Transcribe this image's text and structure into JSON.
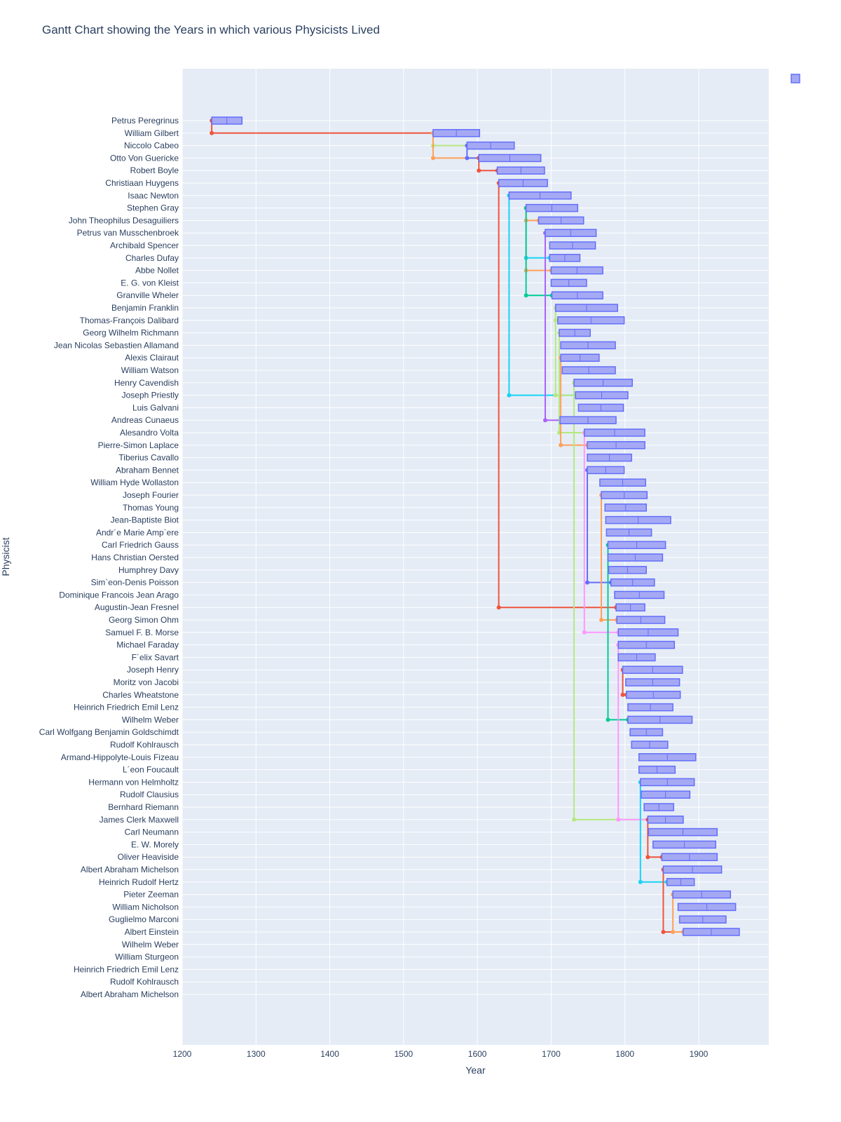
{
  "chart_data": {
    "type": "gantt",
    "title": "Gantt Chart showing the Years in which various Physicists Lived",
    "xlabel": "Year",
    "ylabel": "Physicist",
    "xlim": [
      1200,
      1995
    ],
    "x_ticks": [
      1200,
      1300,
      1400,
      1500,
      1600,
      1700,
      1800,
      1900
    ],
    "grid": true,
    "legend": "top-right",
    "colors": {
      "plot_bg": "#e5ecf6",
      "grid": "#ffffff",
      "bar_fill": "#a5a9f3",
      "bar_stroke": "#636efa",
      "text": "#2a3f5f",
      "link_palette": [
        "#ef553b",
        "#00cc96",
        "#ab63fa",
        "#ffa15a",
        "#19d3f3",
        "#ff6692",
        "#b6e880",
        "#ff97ff",
        "#fecb52",
        "#636efa"
      ]
    },
    "tasks": [
      {
        "name": "Petrus Peregrinus",
        "start": 1240,
        "end": 1281
      },
      {
        "name": "William Gilbert",
        "start": 1540,
        "end": 1603
      },
      {
        "name": "Niccolo Cabeo",
        "start": 1586,
        "end": 1650
      },
      {
        "name": "Otto Von Guericke",
        "start": 1602,
        "end": 1686
      },
      {
        "name": "Robert Boyle",
        "start": 1627,
        "end": 1691
      },
      {
        "name": "Christiaan Huygens",
        "start": 1629,
        "end": 1695
      },
      {
        "name": "Isaac Newton",
        "start": 1643,
        "end": 1727
      },
      {
        "name": "Stephen Gray",
        "start": 1666,
        "end": 1736
      },
      {
        "name": "John Theophilus Desaguiliers",
        "start": 1683,
        "end": 1744
      },
      {
        "name": "Petrus van Musschenbroek",
        "start": 1692,
        "end": 1761
      },
      {
        "name": "Archibald Spencer",
        "start": 1698,
        "end": 1760
      },
      {
        "name": "Charles Dufay",
        "start": 1698,
        "end": 1739
      },
      {
        "name": "Abbe Nollet",
        "start": 1700,
        "end": 1770
      },
      {
        "name": "E. G. von Kleist",
        "start": 1700,
        "end": 1748
      },
      {
        "name": "Granville Wheler",
        "start": 1701,
        "end": 1770
      },
      {
        "name": "Benjamin Franklin",
        "start": 1706,
        "end": 1790
      },
      {
        "name": "Thomas-François Dalibard",
        "start": 1709,
        "end": 1799
      },
      {
        "name": "Georg Wilhelm Richmann",
        "start": 1711,
        "end": 1753
      },
      {
        "name": "Jean Nicolas Sebastien Allamand",
        "start": 1713,
        "end": 1787
      },
      {
        "name": "Alexis Clairaut",
        "start": 1713,
        "end": 1765
      },
      {
        "name": "William Watson",
        "start": 1715,
        "end": 1787
      },
      {
        "name": "Henry Cavendish",
        "start": 1731,
        "end": 1810
      },
      {
        "name": "Joseph Priestly",
        "start": 1733,
        "end": 1804
      },
      {
        "name": "Luis Galvani",
        "start": 1737,
        "end": 1798
      },
      {
        "name": "Andreas Cunaeus",
        "start": 1712,
        "end": 1788
      },
      {
        "name": "Alesandro Volta",
        "start": 1745,
        "end": 1827
      },
      {
        "name": "Pierre-Simon Laplace",
        "start": 1749,
        "end": 1827
      },
      {
        "name": "Tiberius Cavallo",
        "start": 1749,
        "end": 1809
      },
      {
        "name": "Abraham Bennet",
        "start": 1749,
        "end": 1799
      },
      {
        "name": "William Hyde Wollaston",
        "start": 1766,
        "end": 1828
      },
      {
        "name": "Joseph Fourier",
        "start": 1768,
        "end": 1830
      },
      {
        "name": "Thomas Young",
        "start": 1773,
        "end": 1829
      },
      {
        "name": "Jean-Baptiste Biot",
        "start": 1774,
        "end": 1862
      },
      {
        "name": "Andr´e Marie Amp`ere",
        "start": 1775,
        "end": 1836
      },
      {
        "name": "Carl Friedrich Gauss",
        "start": 1777,
        "end": 1855
      },
      {
        "name": "Hans Christian Oersted",
        "start": 1777,
        "end": 1851
      },
      {
        "name": "Humphrey Davy",
        "start": 1778,
        "end": 1829
      },
      {
        "name": "Sim`eon-Denis Poisson",
        "start": 1781,
        "end": 1840
      },
      {
        "name": "Dominique Francois Jean Arago",
        "start": 1786,
        "end": 1853
      },
      {
        "name": "Augustin-Jean Fresnel",
        "start": 1788,
        "end": 1827
      },
      {
        "name": "Georg Simon Ohm",
        "start": 1789,
        "end": 1854
      },
      {
        "name": "Samuel F. B. Morse",
        "start": 1791,
        "end": 1872
      },
      {
        "name": "Michael Faraday",
        "start": 1791,
        "end": 1867
      },
      {
        "name": "F´elix Savart",
        "start": 1791,
        "end": 1841
      },
      {
        "name": "Joseph Henry",
        "start": 1797,
        "end": 1878
      },
      {
        "name": "Moritz von Jacobi",
        "start": 1801,
        "end": 1874
      },
      {
        "name": "Charles Wheatstone",
        "start": 1802,
        "end": 1875
      },
      {
        "name": "Heinrich Friedrich Emil Lenz",
        "start": 1804,
        "end": 1865
      },
      {
        "name": "Wilhelm Weber",
        "start": 1804,
        "end": 1891
      },
      {
        "name": "Carl Wolfgang Benjamin Goldschimdt",
        "start": 1807,
        "end": 1851
      },
      {
        "name": "Rudolf Kohlrausch",
        "start": 1809,
        "end": 1858
      },
      {
        "name": "Armand-Hippolyte-Louis Fizeau",
        "start": 1819,
        "end": 1896
      },
      {
        "name": "L´eon Foucault",
        "start": 1819,
        "end": 1868
      },
      {
        "name": "Hermann von Helmholtz",
        "start": 1821,
        "end": 1894
      },
      {
        "name": "Rudolf Clausius",
        "start": 1822,
        "end": 1888
      },
      {
        "name": "Bernhard Riemann",
        "start": 1826,
        "end": 1866
      },
      {
        "name": "James Clerk Maxwell",
        "start": 1831,
        "end": 1879
      },
      {
        "name": "Carl Neumann",
        "start": 1832,
        "end": 1925
      },
      {
        "name": "E. W. Morely",
        "start": 1838,
        "end": 1923
      },
      {
        "name": "Oliver Heaviside",
        "start": 1850,
        "end": 1925
      },
      {
        "name": "Albert Abraham Michelson",
        "start": 1852,
        "end": 1931
      },
      {
        "name": "Heinrich Rudolf Hertz",
        "start": 1857,
        "end": 1894
      },
      {
        "name": "Pieter Zeeman",
        "start": 1865,
        "end": 1943
      },
      {
        "name": "William Nicholson",
        "start": 1872,
        "end": 1950
      },
      {
        "name": "Guglielmo Marconi",
        "start": 1874,
        "end": 1937
      },
      {
        "name": "Albert Einstein",
        "start": 1879,
        "end": 1955
      },
      {
        "name": "Wilhelm Weber",
        "start": null,
        "end": null
      },
      {
        "name": "William Sturgeon",
        "start": null,
        "end": null
      },
      {
        "name": "Heinrich Friedrich Emil Lenz",
        "start": null,
        "end": null
      },
      {
        "name": "Rudolf Kohlrausch",
        "start": null,
        "end": null
      },
      {
        "name": "Albert Abraham Michelson",
        "start": null,
        "end": null
      }
    ],
    "links": [
      {
        "from": "Petrus Peregrinus",
        "to": "William Gilbert",
        "color": "#ef553b"
      },
      {
        "from": "William Gilbert",
        "to": "Niccolo Cabeo",
        "color": "#b6e880"
      },
      {
        "from": "William Gilbert",
        "to": "Otto Von Guericke",
        "color": "#ffa15a"
      },
      {
        "from": "Niccolo Cabeo",
        "to": "Otto Von Guericke",
        "color": "#636efa"
      },
      {
        "from": "Otto Von Guericke",
        "to": "Robert Boyle",
        "color": "#ef553b"
      },
      {
        "from": "Christiaan Huygens",
        "to": "Augustin-Jean Fresnel",
        "color": "#ef553b"
      },
      {
        "from": "Isaac Newton",
        "to": "Joseph Priestly",
        "color": "#19d3f3"
      },
      {
        "from": "Stephen Gray",
        "to": "John Theophilus Desaguiliers",
        "color": "#ffa15a"
      },
      {
        "from": "Stephen Gray",
        "to": "Charles Dufay",
        "color": "#19d3f3"
      },
      {
        "from": "Stephen Gray",
        "to": "Abbe Nollet",
        "color": "#ffa15a"
      },
      {
        "from": "Stephen Gray",
        "to": "Granville Wheler",
        "color": "#00cc96"
      },
      {
        "from": "Petrus van Musschenbroek",
        "to": "Andreas Cunaeus",
        "color": "#ab63fa"
      },
      {
        "from": "Benjamin Franklin",
        "to": "Thomas-François Dalibard",
        "color": "#b6e880"
      },
      {
        "from": "Benjamin Franklin",
        "to": "Joseph Priestly",
        "color": "#b6e880"
      },
      {
        "from": "Georg Wilhelm Richmann",
        "to": "Alesandro Volta",
        "color": "#b6e880"
      },
      {
        "from": "Alexis Clairaut",
        "to": "Pierre-Simon Laplace",
        "color": "#ffa15a"
      },
      {
        "from": "Henry Cavendish",
        "to": "James Clerk Maxwell",
        "color": "#b6e880"
      },
      {
        "from": "Alesandro Volta",
        "to": "Samuel F. B. Morse",
        "color": "#ff97ff"
      },
      {
        "from": "Abraham Bennet",
        "to": "Sim`eon-Denis Poisson",
        "color": "#636efa"
      },
      {
        "from": "Joseph Fourier",
        "to": "Georg Simon Ohm",
        "color": "#ffa15a"
      },
      {
        "from": "Carl Friedrich Gauss",
        "to": "Wilhelm Weber",
        "color": "#00cc96"
      },
      {
        "from": "Michael Faraday",
        "to": "James Clerk Maxwell",
        "color": "#ff97ff"
      },
      {
        "from": "Joseph Henry",
        "to": "Charles Wheatstone",
        "color": "#ef553b"
      },
      {
        "from": "Hermann von Helmholtz",
        "to": "Heinrich Rudolf Hertz",
        "color": "#19d3f3"
      },
      {
        "from": "James Clerk Maxwell",
        "to": "Oliver Heaviside",
        "color": "#ef553b"
      },
      {
        "from": "Albert Abraham Michelson",
        "to": "Albert Einstein",
        "color": "#ef553b"
      },
      {
        "from": "Pieter Zeeman",
        "to": "Albert Einstein",
        "color": "#ffa15a"
      }
    ]
  }
}
